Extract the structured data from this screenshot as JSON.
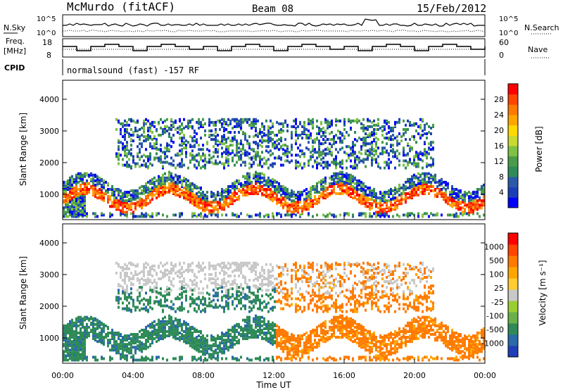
{
  "header": {
    "title": "McMurdo (fitACF)",
    "beam": "Beam 08",
    "date": "15/Feb/2012"
  },
  "noise_panel": {
    "left_label": "N.Sky",
    "right_label": "N.Search",
    "left_ticks": [
      "10^5",
      "10^0"
    ],
    "right_ticks": [
      "10^5",
      "10^0"
    ]
  },
  "freq_panel": {
    "left_label_line1": "Freq.",
    "left_label_line2": "[MHz]",
    "right_label": "Nave",
    "left_ticks": [
      "18",
      "8"
    ],
    "right_ticks": [
      "60",
      "0"
    ]
  },
  "cpid": {
    "label": "CPID",
    "mode": "normalsound (fast) -157 RF"
  },
  "chart_data": [
    {
      "type": "heatmap",
      "title": "Power",
      "ylabel": "Slant Range [km]",
      "xlabel": "Time UT",
      "xlim": [
        0,
        24
      ],
      "ylim": [
        200,
        4600
      ],
      "yticks": [
        "1000",
        "2000",
        "3000",
        "4000"
      ],
      "colorbar": {
        "label": "Power [dB]",
        "ticks": [
          "28",
          "24",
          "20",
          "16",
          "12",
          "8",
          "4"
        ],
        "colors": [
          "#0000ff",
          "#1b3fb8",
          "#2a5aa8",
          "#2e8b57",
          "#4a9b4a",
          "#7dc242",
          "#c8d932",
          "#ffd800",
          "#ffa500",
          "#ff7a00",
          "#ff4500",
          "#ff0000"
        ]
      }
    },
    {
      "type": "heatmap",
      "title": "Velocity",
      "ylabel": "Slant Range [km]",
      "xlabel": "Time UT",
      "xlim": [
        0,
        24
      ],
      "ylim": [
        200,
        4600
      ],
      "yticks": [
        "1000",
        "2000",
        "3000",
        "4000"
      ],
      "colorbar": {
        "label": "Velocity [m s⁻¹]",
        "ticks": [
          "1000",
          "500",
          "100",
          "25",
          "-25",
          "-100",
          "-500",
          "-1000"
        ],
        "colors": [
          "#1e3fb8",
          "#2a6aa8",
          "#2e8b57",
          "#6ab04a",
          "#9acd32",
          "#c8c8c8",
          "#ffcc33",
          "#ffa500",
          "#ff7a00",
          "#ff4500",
          "#ff0000"
        ]
      }
    }
  ],
  "xaxis": {
    "ticks": [
      "00:00",
      "04:00",
      "08:00",
      "12:00",
      "16:00",
      "20:00",
      "00:00"
    ],
    "label": "Time UT"
  }
}
